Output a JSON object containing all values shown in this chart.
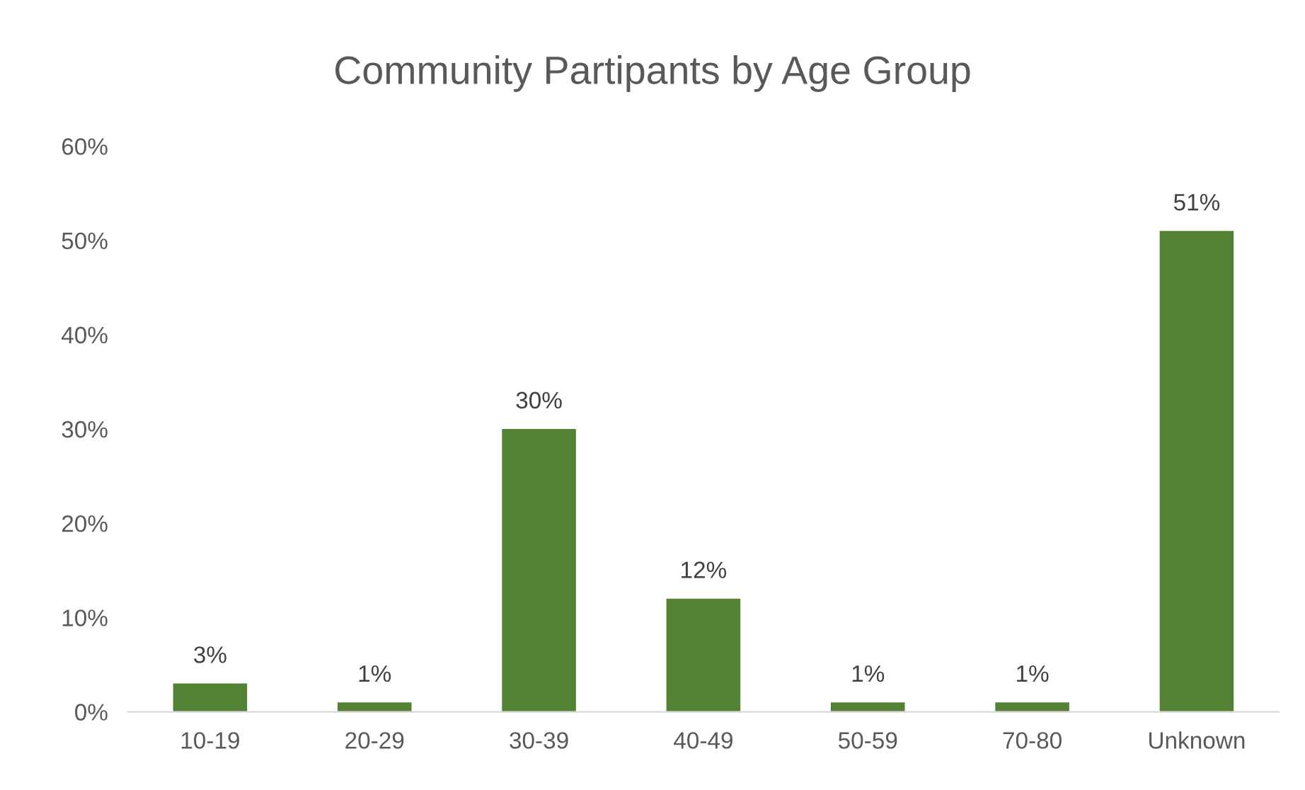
{
  "chart_data": {
    "type": "bar",
    "title": "Community Partipants by Age Group",
    "categories": [
      "10-19",
      "20-29",
      "30-39",
      "40-49",
      "50-59",
      "70-80",
      "Unknown"
    ],
    "values": [
      3,
      1,
      30,
      12,
      1,
      1,
      51
    ],
    "value_labels": [
      "3%",
      "1%",
      "30%",
      "12%",
      "1%",
      "1%",
      "51%"
    ],
    "color": "#548235",
    "ylim": [
      0,
      60
    ],
    "yticks": [
      {
        "value": 0,
        "label": "0%"
      },
      {
        "value": 10,
        "label": "10%"
      },
      {
        "value": 20,
        "label": "20%"
      },
      {
        "value": 30,
        "label": "30%"
      },
      {
        "value": 40,
        "label": "40%"
      },
      {
        "value": 50,
        "label": "50%"
      },
      {
        "value": 60,
        "label": "60%"
      }
    ],
    "grid": false
  }
}
